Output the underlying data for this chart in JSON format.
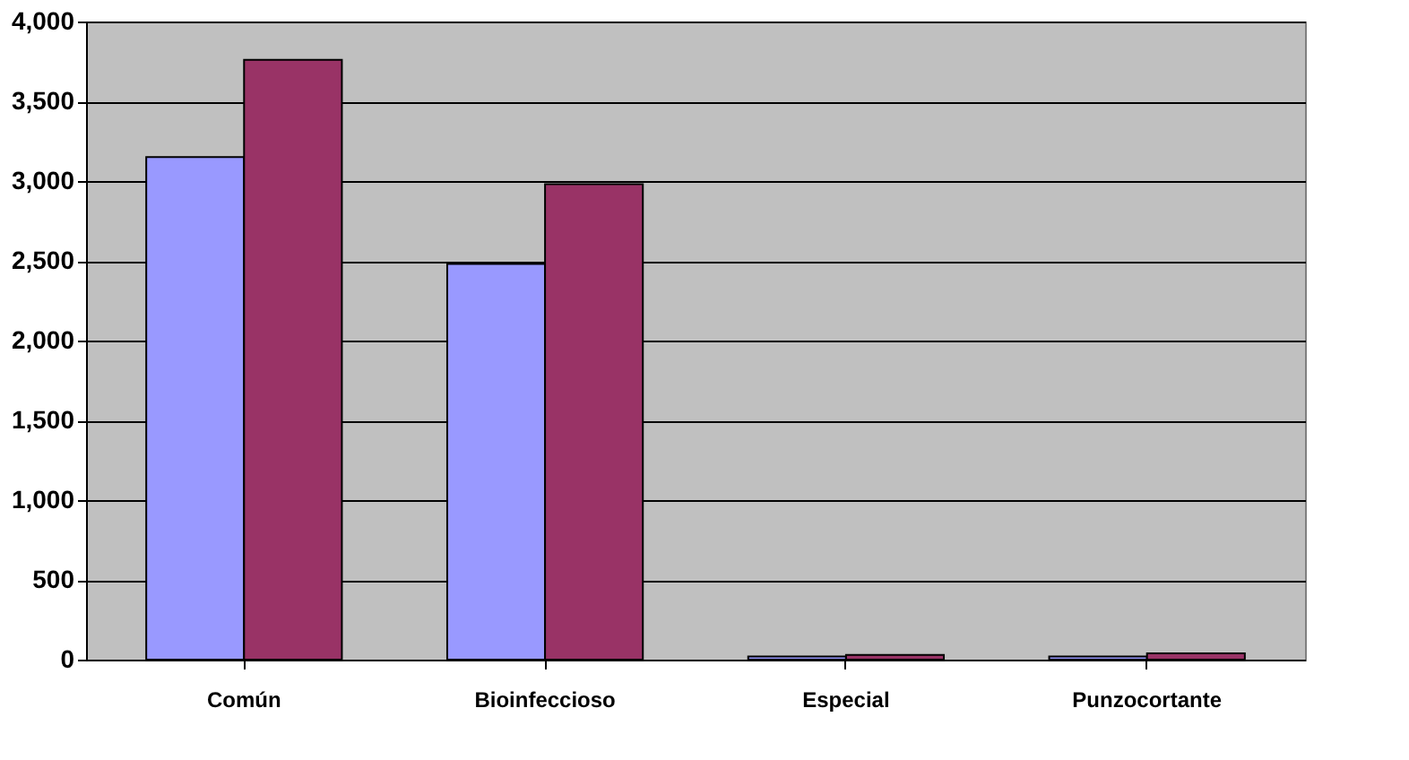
{
  "chart_data": {
    "type": "bar",
    "categories": [
      "Común",
      "Bioinfeccioso",
      "Especial",
      "Punzocortante"
    ],
    "series": [
      {
        "color": "#9999ff",
        "values": [
          3150,
          2480,
          20,
          20
        ]
      },
      {
        "color": "#993366",
        "values": [
          3760,
          2980,
          30,
          40
        ]
      }
    ],
    "ylim": [
      0,
      4000
    ],
    "yticks": [
      {
        "value": 0,
        "label": "0"
      },
      {
        "value": 500,
        "label": "500"
      },
      {
        "value": 1000,
        "label": "1,000"
      },
      {
        "value": 1500,
        "label": "1,500"
      },
      {
        "value": 2000,
        "label": "2,000"
      },
      {
        "value": 2500,
        "label": "2,500"
      },
      {
        "value": 3000,
        "label": "3,000"
      },
      {
        "value": 3500,
        "label": "3,500"
      },
      {
        "value": 4000,
        "label": "4,000"
      }
    ],
    "grid": "y"
  }
}
